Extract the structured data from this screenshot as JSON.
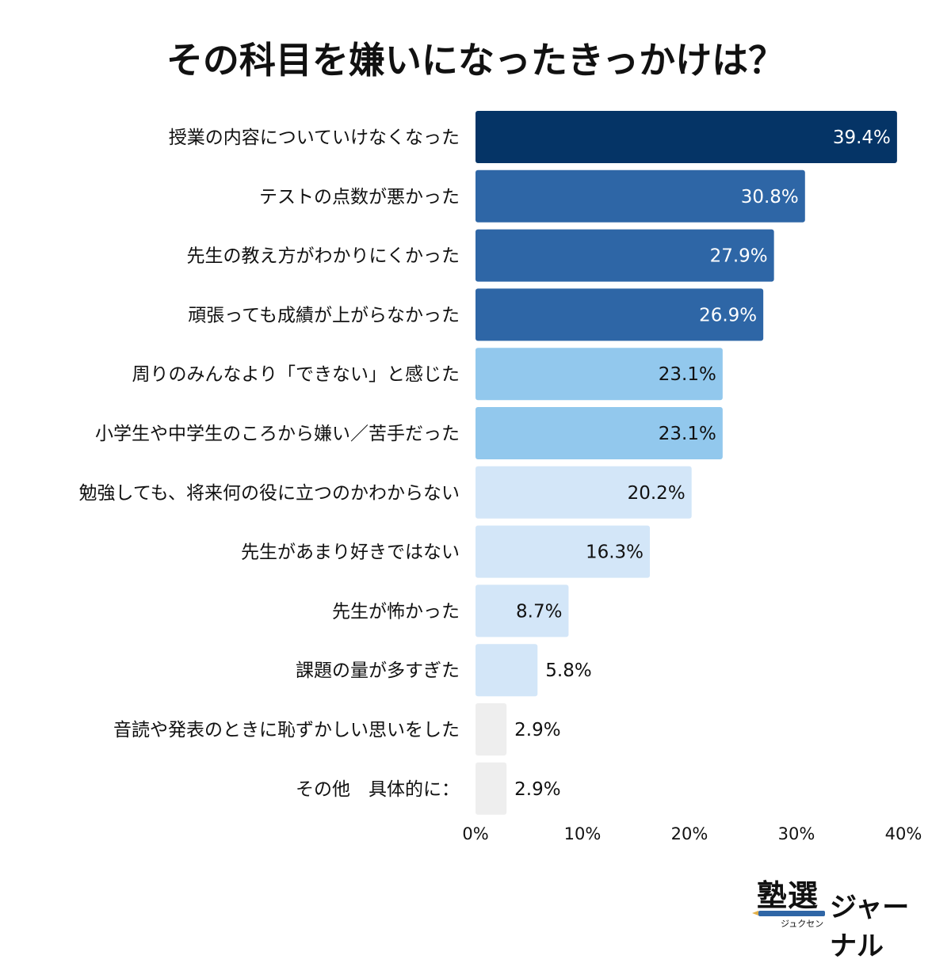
{
  "chart_data": {
    "type": "bar",
    "orientation": "horizontal",
    "title": "その科目を嫌いになったきっかけは？",
    "categories": [
      "授業の内容についていけなくなった",
      "テストの点数が悪かった",
      "先生の教え方がわかりにくかった",
      "頑張っても成績が上がらなかった",
      "周りのみんなより「できない」と感じた",
      "小学生や中学生のころから嫌い／苦手だった",
      "勉強しても、将来何の役に立つのかわからない",
      "先生があまり好きではない",
      "先生が怖かった",
      "課題の量が多すぎた",
      "音読や発表のときに恥ずかしい思いをした",
      "その他　具体的に："
    ],
    "values": [
      39.4,
      30.8,
      27.9,
      26.9,
      23.1,
      23.1,
      20.2,
      16.3,
      8.7,
      5.8,
      2.9,
      2.9
    ],
    "value_labels": [
      "39.4%",
      "30.8%",
      "27.9%",
      "26.9%",
      "23.1%",
      "23.1%",
      "20.2%",
      "16.3%",
      "8.7%",
      "5.8%",
      "2.9%",
      "2.9%"
    ],
    "bar_colors": [
      "#053466",
      "#2e66a6",
      "#2e66a6",
      "#2e66a6",
      "#92c8ed",
      "#92c8ed",
      "#d3e6f8",
      "#d3e6f8",
      "#d3e6f8",
      "#d3e6f8",
      "#eeeeee",
      "#eeeeee"
    ],
    "label_colors": [
      "#ffffff",
      "#ffffff",
      "#ffffff",
      "#ffffff",
      "#111111",
      "#111111",
      "#111111",
      "#111111",
      "#111111",
      "#111111",
      "#111111",
      "#111111"
    ],
    "xlim": [
      0,
      40
    ],
    "xticks": [
      0,
      10,
      20,
      30,
      40
    ],
    "xtick_labels": [
      "0%",
      "10%",
      "20%",
      "30%",
      "40%"
    ],
    "grid": false,
    "xlabel": "",
    "ylabel": ""
  },
  "logo": {
    "mark": "塾選",
    "sub": "ジュクセン",
    "journal": "ジャーナル"
  }
}
